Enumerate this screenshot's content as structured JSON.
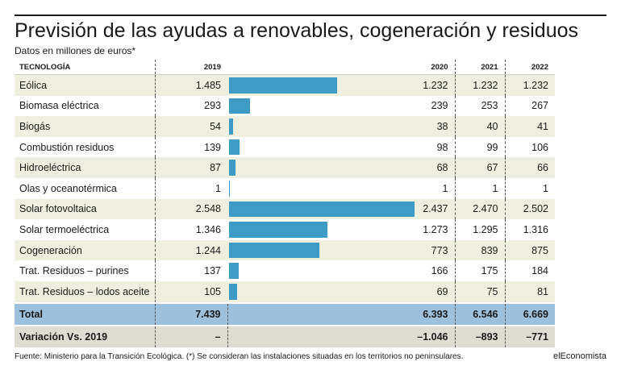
{
  "title": "Previsión de las ayudas a renovables, cogeneración y residuos",
  "subtitle": "Datos en millones de euros*",
  "chart_data": {
    "type": "table",
    "columns": [
      "TECNOLOGÍA",
      "2019",
      "2020",
      "2021",
      "2022"
    ],
    "bar_column": "2019",
    "bar_max": 2548,
    "rows": [
      {
        "name": "Eólica",
        "v2019": "1.485",
        "bar": 1485,
        "v2020": "1.232",
        "v2021": "1.232",
        "v2022": "1.232"
      },
      {
        "name": "Biomasa eléctrica",
        "v2019": "293",
        "bar": 293,
        "v2020": "239",
        "v2021": "253",
        "v2022": "267"
      },
      {
        "name": "Biogás",
        "v2019": "54",
        "bar": 54,
        "v2020": "38",
        "v2021": "40",
        "v2022": "41"
      },
      {
        "name": "Combustión residuos",
        "v2019": "139",
        "bar": 139,
        "v2020": "98",
        "v2021": "99",
        "v2022": "106"
      },
      {
        "name": "Hidroeléctrica",
        "v2019": "87",
        "bar": 87,
        "v2020": "68",
        "v2021": "67",
        "v2022": "66"
      },
      {
        "name": "Olas y oceanotérmica",
        "v2019": "1",
        "bar": 1,
        "v2020": "1",
        "v2021": "1",
        "v2022": "1"
      },
      {
        "name": "Solar fotovoltaica",
        "v2019": "2.548",
        "bar": 2548,
        "v2020": "2.437",
        "v2021": "2.470",
        "v2022": "2.502"
      },
      {
        "name": "Solar termoeléctrica",
        "v2019": "1.346",
        "bar": 1346,
        "v2020": "1.273",
        "v2021": "1.295",
        "v2022": "1.316"
      },
      {
        "name": "Cogeneración",
        "v2019": "1.244",
        "bar": 1244,
        "v2020": "773",
        "v2021": "839",
        "v2022": "875"
      },
      {
        "name": "Trat. Residuos – purines",
        "v2019": "137",
        "bar": 137,
        "v2020": "166",
        "v2021": "175",
        "v2022": "184"
      },
      {
        "name": "Trat. Residuos – lodos aceite",
        "v2019": "105",
        "bar": 105,
        "v2020": "69",
        "v2021": "75",
        "v2022": "81"
      }
    ],
    "total": {
      "name": "Total",
      "v2019": "7.439",
      "v2020": "6.393",
      "v2021": "6.546",
      "v2022": "6.669"
    },
    "variation": {
      "name": "Variación Vs. 2019",
      "v2019": "–",
      "v2020": "–1.046",
      "v2021": "–893",
      "v2022": "–771"
    }
  },
  "footer": {
    "source": "Fuente: Ministerio para la Transición Ecológica. (*) Se consideran las instalaciones situadas en los territorios no peninsulares.",
    "brand": "elEconomista"
  },
  "colors": {
    "bar": "#3e9bc6",
    "row_alt": "#efefdf",
    "total_row": "#9dc1dd",
    "variation_row": "#dfddd2"
  }
}
